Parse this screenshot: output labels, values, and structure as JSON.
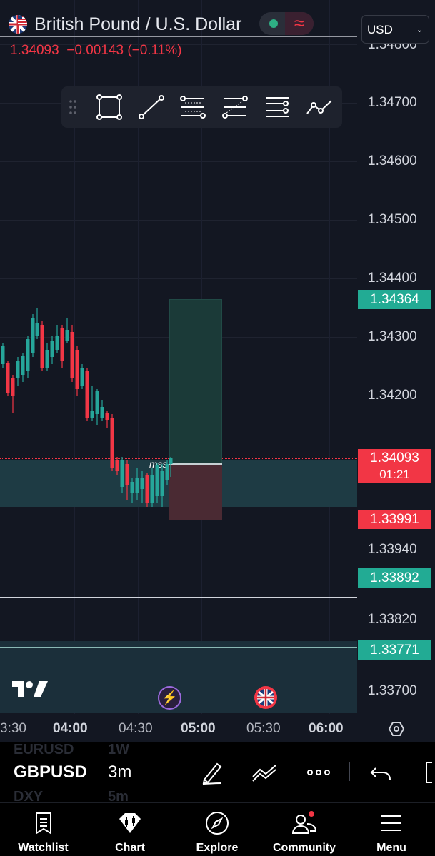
{
  "header": {
    "symbol_title": "British Pound / U.S. Dollar",
    "price": "1.34093",
    "change": "−0.00143",
    "change_pct": "(−0.11%)",
    "currency": "USD",
    "wave_glyph": "≈"
  },
  "toolbar": {
    "tools": [
      "rectangle-tool-icon",
      "trend-line-icon",
      "fib-retracement-icon",
      "fib-extension-icon",
      "horizontal-lines-icon",
      "path-icon"
    ]
  },
  "price_axis": {
    "labels": [
      "1.34800",
      "1.34700",
      "1.34600",
      "1.34500",
      "1.34400",
      "1.34300",
      "1.34200",
      "1.33940",
      "1.33820",
      "1.33700"
    ],
    "tags": {
      "target": "1.34364",
      "current": "1.34093",
      "countdown": "01:21",
      "stop": "1.33991",
      "level1": "1.33892",
      "level2": "1.33771"
    }
  },
  "time_axis": [
    "3:30",
    "04:00",
    "04:30",
    "05:00",
    "05:30",
    "06:00"
  ],
  "chart": {
    "annotation": "mss",
    "watermark": "TV",
    "colors": {
      "up": "#26a69a",
      "down": "#f23645",
      "target_zone": "#1b3a38",
      "stop_zone": "#4a2a33"
    }
  },
  "symbol_row": {
    "ghost_top_symbol": "EURUSD",
    "ghost_top_tf": "1W",
    "symbol": "GBPUSD",
    "timeframe": "3m",
    "ghost_bottom_symbol": "DXY",
    "ghost_bottom_tf": "5m"
  },
  "nav": {
    "watchlist": "Watchlist",
    "chart": "Chart",
    "explore": "Explore",
    "community": "Community",
    "menu": "Menu"
  }
}
